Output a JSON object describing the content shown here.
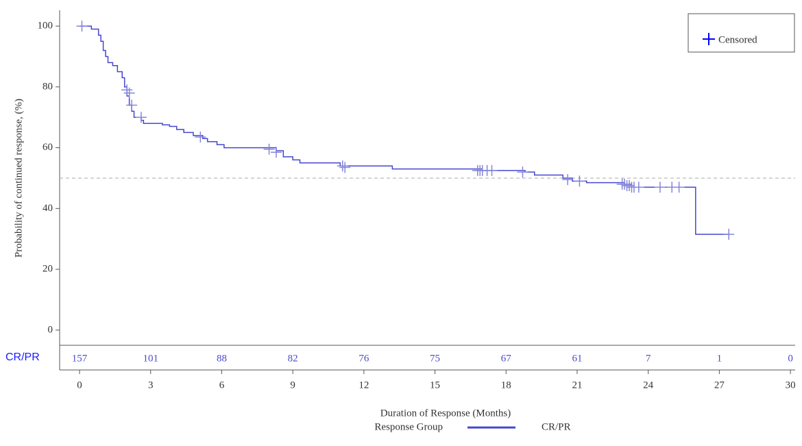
{
  "chart_data": {
    "type": "km",
    "xlabel": "Duration of Response (Months)",
    "ylabel": "Probability of continued response, (%)",
    "xlim": [
      -0.84,
      30.2
    ],
    "ylim": [
      -5,
      105.2
    ],
    "xticks": [
      0,
      3,
      6,
      9,
      12,
      15,
      18,
      21,
      24,
      27,
      30
    ],
    "yticks": [
      0,
      20,
      40,
      60,
      80,
      100
    ],
    "reference_line": 50,
    "legend_title": "Response Group",
    "series": [
      {
        "name": "CR/PR",
        "color": "#4545d0",
        "x": [
          0,
          0.5,
          0.8,
          0.9,
          1.0,
          1.1,
          1.2,
          1.4,
          1.6,
          1.8,
          1.9,
          2.0,
          2.1,
          2.2,
          2.3,
          2.6,
          2.7,
          3.5,
          3.8,
          4.1,
          4.4,
          4.8,
          5.2,
          5.4,
          5.8,
          6.1,
          8.3,
          8.6,
          9.0,
          9.3,
          11.0,
          13.2,
          17.0,
          18.8,
          19.2,
          20.4,
          20.8,
          21.4,
          23.0,
          23.3,
          26.0,
          27.4
        ],
        "values": [
          100,
          99,
          97,
          95,
          92,
          90,
          88,
          87,
          85,
          83,
          80,
          77,
          74,
          72,
          70,
          69,
          68,
          67.5,
          67,
          66,
          65,
          64,
          63,
          62,
          61,
          60,
          59,
          57,
          56,
          55,
          54,
          53,
          52.5,
          52,
          51,
          50,
          49,
          48.5,
          48,
          47,
          31.5,
          31.5
        ]
      }
    ],
    "censored": {
      "name": "Censored",
      "color": "#8585d8",
      "legend_color": "#0000ff",
      "x": [
        0.1,
        2.0,
        2.1,
        2.2,
        2.6,
        5.1,
        8.0,
        8.3,
        11.1,
        11.2,
        16.8,
        16.9,
        17.0,
        17.2,
        17.4,
        18.7,
        20.6,
        21.1,
        22.9,
        23.0,
        23.1,
        23.2,
        23.3,
        23.4,
        23.6,
        24.5,
        25.0,
        25.3,
        27.4
      ],
      "values": [
        100,
        79,
        78,
        74,
        70,
        63.5,
        59.5,
        58.5,
        54,
        53.5,
        52.5,
        52.5,
        52.5,
        52.5,
        52.5,
        52,
        49.5,
        49,
        48,
        48,
        47.5,
        47.5,
        47,
        47,
        47,
        47,
        47,
        47,
        31.5
      ]
    },
    "risk_table": {
      "label": "CR/PR",
      "x": [
        0,
        3,
        6,
        9,
        12,
        15,
        18,
        21,
        24,
        27,
        30
      ],
      "values": [
        157,
        101,
        88,
        82,
        76,
        75,
        67,
        61,
        7,
        1,
        0
      ]
    }
  }
}
